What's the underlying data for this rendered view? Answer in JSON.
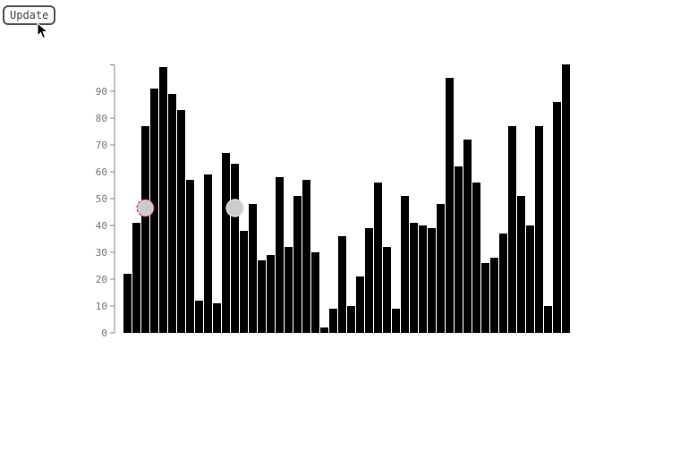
{
  "toolbar": {
    "update_label": "Update"
  },
  "colors": {
    "bar": "#000000",
    "axis": "#888888",
    "tick_text": "#777777",
    "marker_fill": "#cccccc",
    "marker_stroke_active": "#e0305a",
    "marker_stroke": "#dddddd"
  },
  "chart_data": {
    "type": "bar",
    "ylim": [
      0,
      100
    ],
    "y_ticks": [
      0,
      10,
      20,
      30,
      40,
      50,
      60,
      70,
      80,
      90
    ],
    "grid": false,
    "values": [
      22,
      41,
      77,
      91,
      99,
      89,
      83,
      57,
      12,
      59,
      11,
      67,
      63,
      38,
      48,
      27,
      29,
      58,
      32,
      51,
      57,
      30,
      2,
      9,
      36,
      10,
      21,
      39,
      56,
      32,
      9,
      51,
      41,
      40,
      39,
      48,
      95,
      62,
      72,
      56,
      26,
      28,
      37,
      77,
      51,
      40,
      77,
      10,
      86,
      100
    ],
    "markers": [
      {
        "index": 2,
        "value": 46.5,
        "style": "dashed"
      },
      {
        "index": 12,
        "value": 46.5,
        "style": "solid"
      }
    ]
  }
}
